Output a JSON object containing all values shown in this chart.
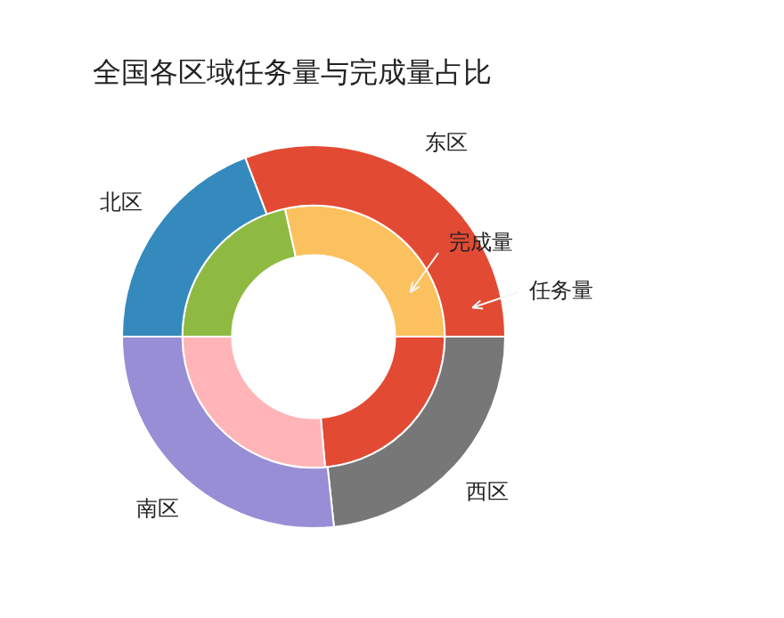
{
  "chart_data": {
    "type": "donut",
    "title": "全国各区域任务量与完成量占比",
    "categories": [
      "东区",
      "北区",
      "南区",
      "西区"
    ],
    "series": [
      {
        "name": "任务量",
        "colors": [
          "#e24a33",
          "#348abd",
          "#988ed5",
          "#777777"
        ],
        "values": [
          30.8,
          19.2,
          26.7,
          23.3
        ]
      },
      {
        "name": "完成量",
        "colors": [
          "#fbc15e",
          "#8eba42",
          "#ffb5b8",
          "#e24a33"
        ],
        "values": [
          28.5,
          21.5,
          26.4,
          23.6
        ]
      }
    ],
    "legend": false
  }
}
